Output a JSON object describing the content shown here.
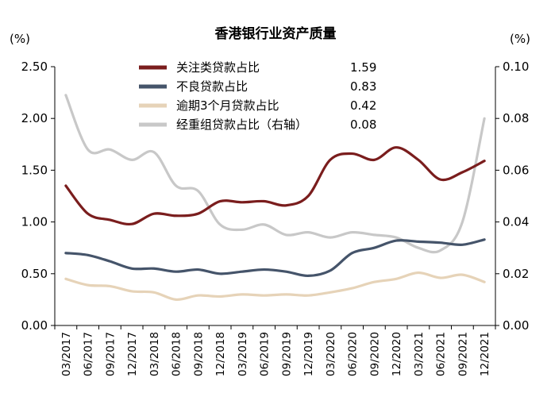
{
  "chart_data": {
    "type": "line",
    "title": "香港银行业资产质量",
    "left_unit": "(%)",
    "right_unit": "(%)",
    "ylim_left": [
      0,
      2.5
    ],
    "ylim_right": [
      0,
      0.1
    ],
    "yticks_left": [
      "0.00",
      "0.50",
      "1.00",
      "1.50",
      "2.00",
      "2.50"
    ],
    "yticks_right": [
      "0.00",
      "0.02",
      "0.04",
      "0.06",
      "0.08",
      "0.10"
    ],
    "categories": [
      "03/2017",
      "06/2017",
      "09/2017",
      "12/2017",
      "03/2018",
      "06/2018",
      "09/2018",
      "12/2018",
      "03/2019",
      "06/2019",
      "09/2019",
      "12/2019",
      "03/2020",
      "06/2020",
      "09/2020",
      "12/2020",
      "03/2021",
      "06/2021",
      "09/2021",
      "12/2021"
    ],
    "grid": false,
    "legend_position": "top-center",
    "series": [
      {
        "name": "关注类贷款占比",
        "value_label": "1.59",
        "color": "#7a1d1d",
        "axis": "left",
        "values": [
          1.35,
          1.08,
          1.02,
          0.98,
          1.08,
          1.06,
          1.08,
          1.2,
          1.19,
          1.2,
          1.16,
          1.25,
          1.6,
          1.66,
          1.6,
          1.72,
          1.6,
          1.41,
          1.48,
          1.59
        ]
      },
      {
        "name": "不良贷款占比",
        "value_label": "0.83",
        "color": "#45546a",
        "axis": "left",
        "values": [
          0.7,
          0.68,
          0.62,
          0.55,
          0.55,
          0.52,
          0.54,
          0.5,
          0.52,
          0.54,
          0.52,
          0.48,
          0.53,
          0.7,
          0.75,
          0.82,
          0.81,
          0.8,
          0.78,
          0.83
        ]
      },
      {
        "name": "逾期3个月贷款占比",
        "value_label": "0.42",
        "color": "#e6d3b8",
        "axis": "left",
        "values": [
          0.45,
          0.39,
          0.38,
          0.33,
          0.32,
          0.25,
          0.29,
          0.28,
          0.3,
          0.29,
          0.3,
          0.29,
          0.32,
          0.36,
          0.42,
          0.45,
          0.51,
          0.46,
          0.49,
          0.42
        ]
      },
      {
        "name": "经重组贷款占比（右轴）",
        "value_label": "0.08",
        "color": "#c8c8c8",
        "axis": "right",
        "values": [
          0.089,
          0.068,
          0.068,
          0.064,
          0.067,
          0.054,
          0.052,
          0.039,
          0.037,
          0.039,
          0.035,
          0.036,
          0.034,
          0.036,
          0.035,
          0.034,
          0.03,
          0.029,
          0.04,
          0.08
        ]
      }
    ]
  }
}
